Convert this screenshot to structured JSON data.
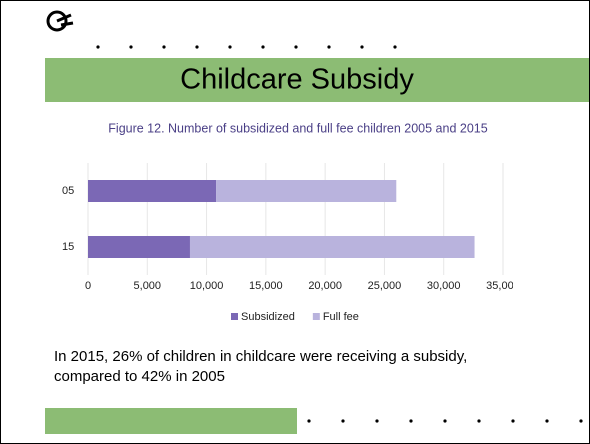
{
  "slide": {
    "title": "Childcare Subsidy",
    "caption": "In 2015, 26% of children in childcare were receiving a subsidy, compared to 42% in 2005"
  },
  "chart_data": {
    "type": "stacked-barh",
    "title": "Figure 12. Number of subsidized and full fee children 2005 and 2015",
    "categories": [
      "05",
      "15"
    ],
    "series": [
      {
        "name": "Subsidized",
        "color": "#7b68b5",
        "values": [
          10800,
          8600
        ]
      },
      {
        "name": "Full fee",
        "color": "#b9b3dd",
        "values": [
          15200,
          24000
        ]
      }
    ],
    "xlim": [
      0,
      35000
    ],
    "xticks": [
      0,
      {
        "value": 5000,
        "label": "5,000"
      },
      {
        "value": 10000,
        "label": "10,000"
      },
      {
        "value": 15000,
        "label": "15,000"
      },
      {
        "value": 20000,
        "label": "20,000"
      },
      {
        "value": 25000,
        "label": "25,000"
      },
      {
        "value": 30000,
        "label": "30,000"
      },
      {
        "value": 35000,
        "label": "35,000"
      }
    ],
    "grid": true,
    "legend": "bottom"
  }
}
